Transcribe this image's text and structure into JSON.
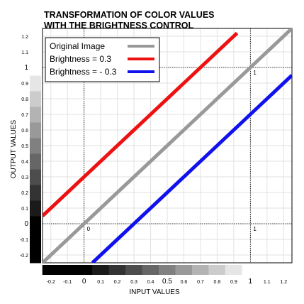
{
  "chart_data": {
    "type": "line",
    "title_lines": [
      "TRANSFORMATION OF COLOR VALUES",
      "WITH THE BRIGHTNESS CONTROL"
    ],
    "xlabel": "INPUT VALUES",
    "ylabel": "OUTPUT VALUES",
    "xlim": [
      -0.25,
      1.25
    ],
    "ylim": [
      -0.25,
      1.25
    ],
    "grid": true,
    "legend_position": "top-left",
    "x_ticks": [
      {
        "value": -0.2,
        "label": "-0.2",
        "major": false
      },
      {
        "value": -0.1,
        "label": "-0.1",
        "major": false
      },
      {
        "value": 0,
        "label": "0",
        "major": true
      },
      {
        "value": 0.1,
        "label": "0.1",
        "major": false
      },
      {
        "value": 0.2,
        "label": "0.2",
        "major": false
      },
      {
        "value": 0.3,
        "label": "0.3",
        "major": false
      },
      {
        "value": 0.4,
        "label": "0.4",
        "major": false
      },
      {
        "value": 0.5,
        "label": "0.5",
        "major": true
      },
      {
        "value": 0.6,
        "label": "0.6",
        "major": false
      },
      {
        "value": 0.7,
        "label": "0.7",
        "major": false
      },
      {
        "value": 0.8,
        "label": "0.8",
        "major": false
      },
      {
        "value": 0.9,
        "label": "0.9",
        "major": false
      },
      {
        "value": 1,
        "label": "1",
        "major": true
      },
      {
        "value": 1.1,
        "label": "1.1",
        "major": false
      },
      {
        "value": 1.2,
        "label": "1.2",
        "major": false
      }
    ],
    "y_ticks": [
      {
        "value": -0.2,
        "label": "-0.2",
        "major": false
      },
      {
        "value": -0.1,
        "label": "-0.1",
        "major": false
      },
      {
        "value": 0,
        "label": "0",
        "major": true
      },
      {
        "value": 0.1,
        "label": "0.1",
        "major": false
      },
      {
        "value": 0.2,
        "label": "0.2",
        "major": false
      },
      {
        "value": 0.3,
        "label": "0.3",
        "major": false
      },
      {
        "value": 0.4,
        "label": "0.4",
        "major": false
      },
      {
        "value": 0.5,
        "label": "0.5",
        "major": false
      },
      {
        "value": 0.6,
        "label": "0.6",
        "major": false
      },
      {
        "value": 0.7,
        "label": "0.7",
        "major": false
      },
      {
        "value": 0.8,
        "label": "0.8",
        "major": false
      },
      {
        "value": 0.9,
        "label": "0.9",
        "major": false
      },
      {
        "value": 1,
        "label": "1",
        "major": true
      },
      {
        "value": 1.1,
        "label": "1.1",
        "major": false
      },
      {
        "value": 1.2,
        "label": "1.2",
        "major": false
      }
    ],
    "reference_lines": [
      0,
      1
    ],
    "corner_labels": [
      {
        "x": 0,
        "y": 0,
        "label": "0"
      },
      {
        "x": 1,
        "y": 0,
        "label": "1"
      },
      {
        "x": 1,
        "y": 1,
        "label": "1"
      }
    ],
    "gray_scale_levels": [
      0,
      0.1,
      0.2,
      0.3,
      0.4,
      0.5,
      0.6,
      0.7,
      0.8,
      0.9,
      1
    ],
    "series": [
      {
        "name": "Original Image",
        "color": "#999999",
        "x": [
          -0.25,
          1.25
        ],
        "y": [
          -0.25,
          1.25
        ]
      },
      {
        "name": "Brightness = 0.3",
        "color": "#ee1111",
        "x": [
          -0.25,
          0.92
        ],
        "y": [
          0.05,
          1.22
        ]
      },
      {
        "name": "Brightness = - 0.3",
        "color": "#1111ee",
        "x": [
          0.05,
          1.25
        ],
        "y": [
          -0.25,
          0.95
        ]
      }
    ]
  }
}
